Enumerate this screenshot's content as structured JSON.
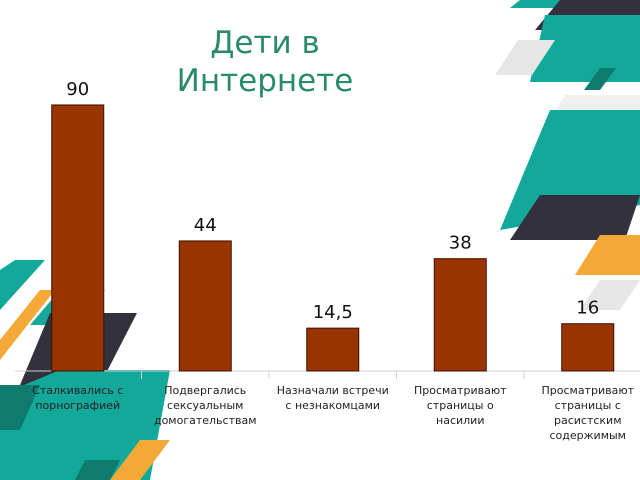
{
  "chart_data": {
    "type": "bar",
    "title": "Дети в Интернете",
    "categories": [
      "Сталкивались с порнографией",
      "Подвергались сексуальным домогательствам",
      "Назначали встречи с незнакомцами",
      "Просматривают страницы о насилии",
      "Просматривают страницы с расистским содержимым"
    ],
    "values": [
      90,
      44,
      14.5,
      38,
      16
    ],
    "value_labels": [
      "90",
      "44",
      "14,5",
      "38",
      "16"
    ],
    "color": "#993300"
  }
}
